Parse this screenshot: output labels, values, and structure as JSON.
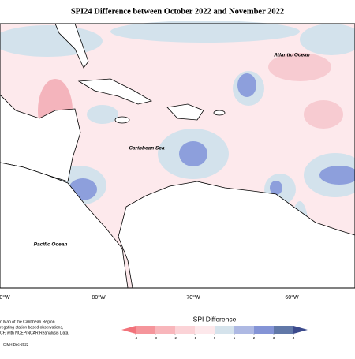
{
  "map": {
    "title": "SPI24 Difference between October 2022 and November 2022",
    "region_labels": [
      "Atlantic Ocean",
      "Caribbean Sea",
      "Pacific Ocean"
    ],
    "lon_ticks": [
      "0°W",
      "80°W",
      "70°W",
      "60°W"
    ],
    "footnote": [
      "n Map of the Caribbean Region",
      "regating station based observations,",
      "CF, with NCEP/NCAR Reanalysis Data."
    ],
    "credit": "CIMH Dec-2022"
  },
  "colorbar": {
    "title": "SPI Difference",
    "ticks": [
      -4,
      -3,
      -2,
      -1,
      0,
      1,
      2,
      3,
      4
    ],
    "colors": [
      "#f2737b",
      "#f5959b",
      "#f8b6bb",
      "#fbd3d7",
      "#fde8eb",
      "#d5e3ec",
      "#aeb9e3",
      "#8494d6",
      "#6178a8",
      "#3b4a8c"
    ]
  }
}
